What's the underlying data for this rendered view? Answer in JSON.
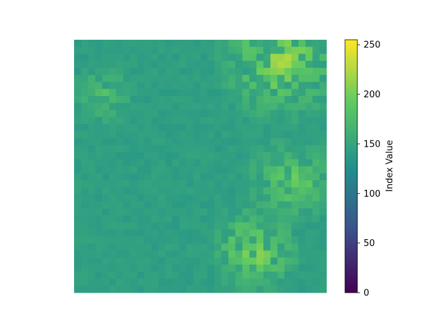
{
  "chart_data": {
    "type": "heatmap",
    "title": "",
    "xlabel": "",
    "ylabel": "",
    "axes_visible": false,
    "colormap": "viridis",
    "colorbar": {
      "label": "Index Value",
      "range": [
        0,
        255
      ],
      "ticks": [
        0,
        50,
        100,
        150,
        200,
        250
      ],
      "tick_labels": [
        "0",
        "50",
        "100",
        "150",
        "200",
        "250"
      ]
    },
    "value_grid": {
      "rows": 36,
      "cols": 36,
      "background_value": 143,
      "bright_regions": [
        {
          "area": "top-right foliage",
          "peak_value": 230
        },
        {
          "area": "upper-left patch",
          "peak_value": 185
        },
        {
          "area": "right-middle foliage",
          "peak_value": 210
        },
        {
          "area": "lower-center foliage",
          "peak_value": 225
        }
      ]
    },
    "colors": {
      "viridis_stops": [
        "#440154",
        "#3b528b",
        "#21918c",
        "#5ec962",
        "#fde725"
      ]
    }
  }
}
